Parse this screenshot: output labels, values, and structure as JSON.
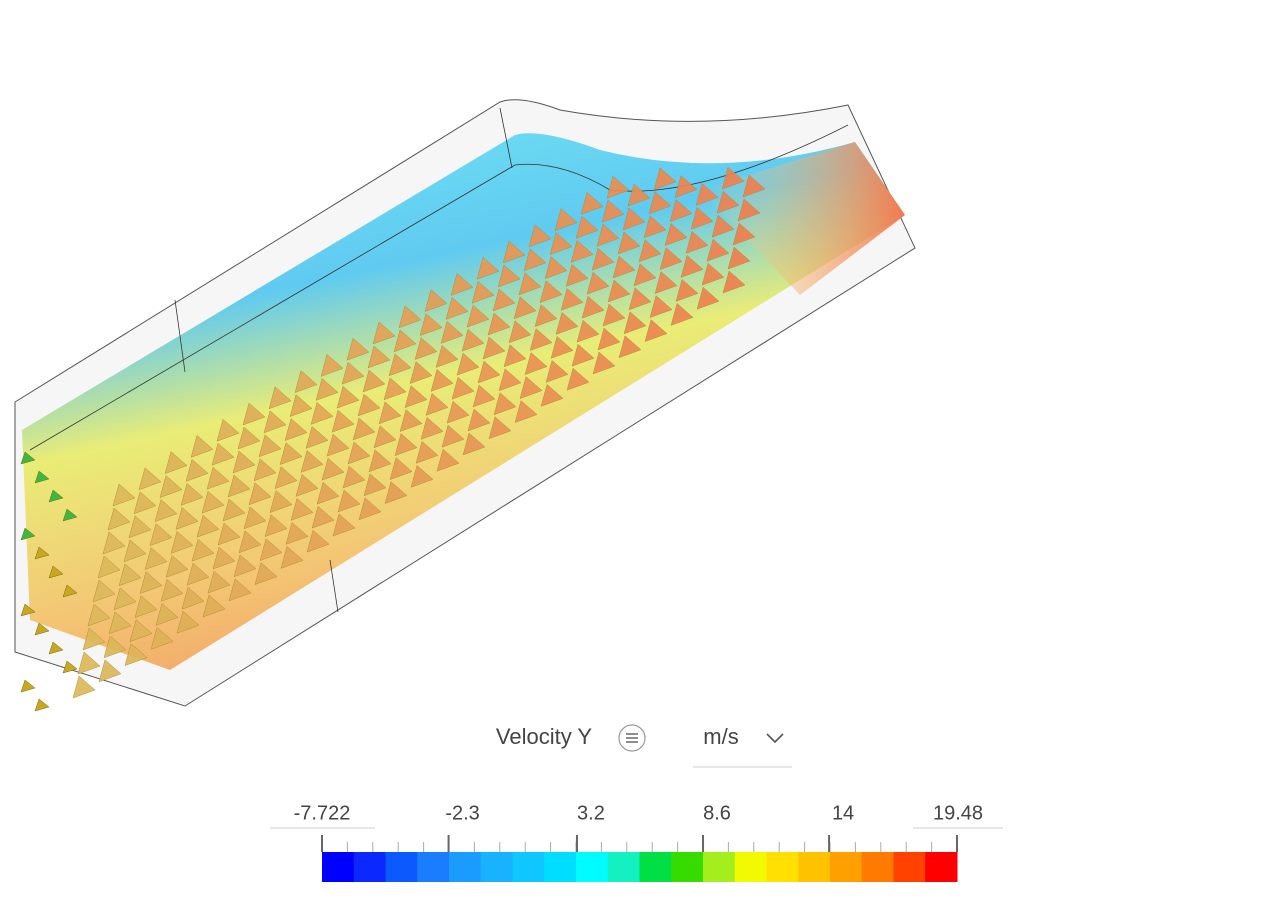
{
  "viewer": {
    "field": "Velocity Y",
    "unit": "m/s"
  },
  "legend": {
    "range": [
      -7.722,
      19.48
    ],
    "ticks": [
      -2.3,
      3.2,
      8.6,
      14
    ],
    "colors": [
      "#0000ff",
      "#0a28ff",
      "#0a5aff",
      "#1a7cff",
      "#1a9cff",
      "#18b2ff",
      "#10c6ff",
      "#00deff",
      "#00fcff",
      "#14f0c0",
      "#00e044",
      "#36dc00",
      "#a4ee1e",
      "#f2fa00",
      "#ffe000",
      "#ffc200",
      "#ffa000",
      "#ff7a00",
      "#ff4200",
      "#ff0000"
    ]
  }
}
